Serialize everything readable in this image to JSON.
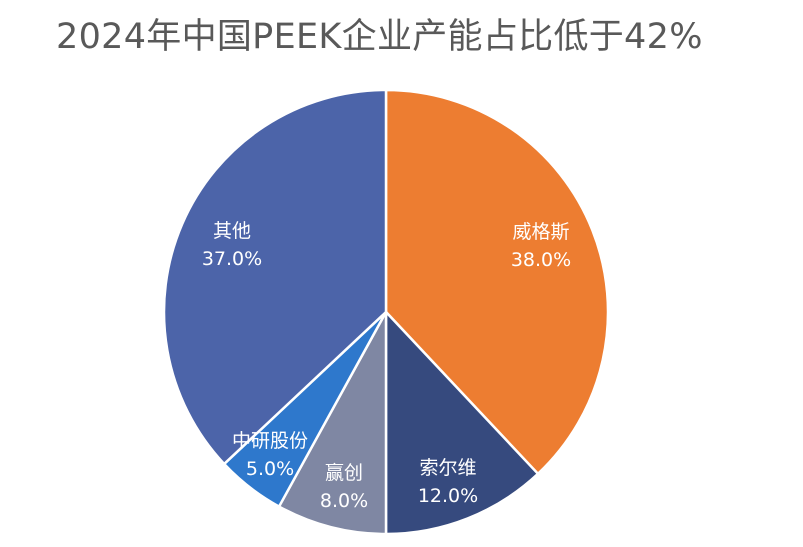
{
  "chart_data": {
    "type": "pie",
    "title": "2024年中国PEEK企业产能占比低于42%",
    "slices": [
      {
        "label": "威格斯",
        "value": 38.0,
        "value_text": "38.0%",
        "color": "#ED7D31"
      },
      {
        "label": "索尔维",
        "value": 12.0,
        "value_text": "12.0%",
        "color": "#364A7E"
      },
      {
        "label": "赢创",
        "value": 8.0,
        "value_text": "8.0%",
        "color": "#7F87A3"
      },
      {
        "label": "中研股份",
        "value": 5.0,
        "value_text": "5.0%",
        "color": "#2E78CC"
      },
      {
        "label": "其他",
        "value": 37.0,
        "value_text": "37.0%",
        "color": "#4C64A9"
      }
    ],
    "start_angle": "12 o'clock",
    "direction": "clockwise",
    "legend": "none"
  }
}
